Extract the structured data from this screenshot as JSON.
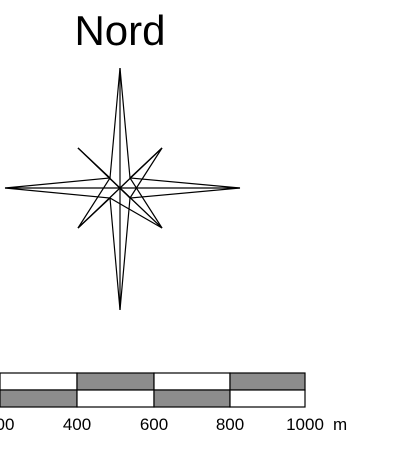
{
  "map": {
    "north_label": "Nord",
    "scale": {
      "tick_labels": [
        "00",
        "400",
        "600",
        "800",
        "1000"
      ],
      "unit": "m",
      "segment_colors": {
        "dark": "#8c8c8c",
        "light": "#ffffff",
        "stroke": "#000000"
      }
    }
  }
}
